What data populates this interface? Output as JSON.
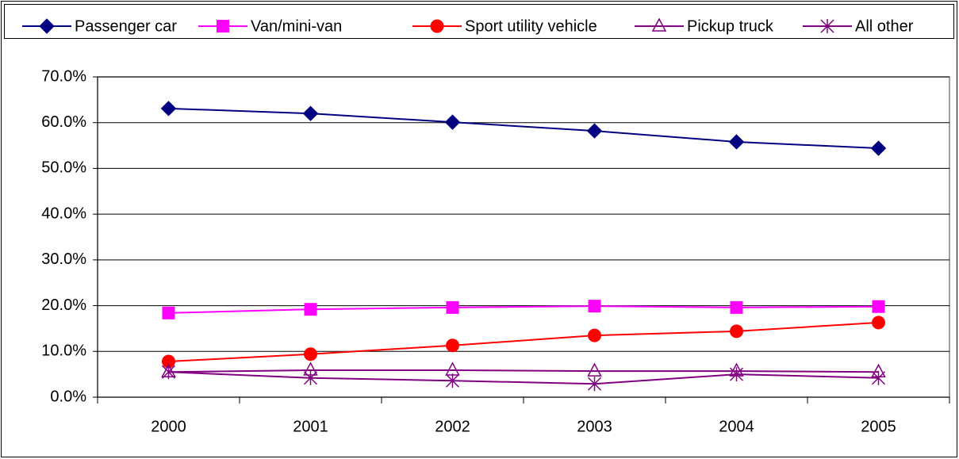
{
  "chart_data": {
    "type": "line",
    "categories": [
      "2000",
      "2001",
      "2002",
      "2003",
      "2004",
      "2005"
    ],
    "series": [
      {
        "name": "Passenger car",
        "color": "#000080",
        "marker": "diamond",
        "values": [
          63.1,
          62.0,
          60.1,
          58.2,
          55.8,
          54.4
        ]
      },
      {
        "name": "Van/mini-van",
        "color": "#FF00FF",
        "marker": "square",
        "values": [
          18.4,
          19.2,
          19.6,
          19.9,
          19.6,
          19.8
        ]
      },
      {
        "name": "Sport utility vehicle",
        "color": "#FF0000",
        "marker": "circle",
        "values": [
          7.8,
          9.4,
          11.3,
          13.5,
          14.4,
          16.3
        ]
      },
      {
        "name": "Pickup truck",
        "color": "#800080",
        "marker": "triangle",
        "values": [
          5.5,
          5.9,
          5.9,
          5.7,
          5.7,
          5.5
        ]
      },
      {
        "name": "All other",
        "color": "#800080",
        "marker": "star",
        "values": [
          5.5,
          4.2,
          3.6,
          2.9,
          5.0,
          4.2
        ]
      }
    ],
    "ylim": [
      0,
      70
    ],
    "yticks": [
      {
        "value": 0,
        "label": "0.0%"
      },
      {
        "value": 10,
        "label": "10.0%"
      },
      {
        "value": 20,
        "label": "20.0%"
      },
      {
        "value": 30,
        "label": "30.0%"
      },
      {
        "value": 40,
        "label": "40.0%"
      },
      {
        "value": 50,
        "label": "50.0%"
      },
      {
        "value": 60,
        "label": "60.0%"
      },
      {
        "value": 70,
        "label": "70.0%"
      }
    ],
    "grid": true,
    "legend": "top"
  }
}
